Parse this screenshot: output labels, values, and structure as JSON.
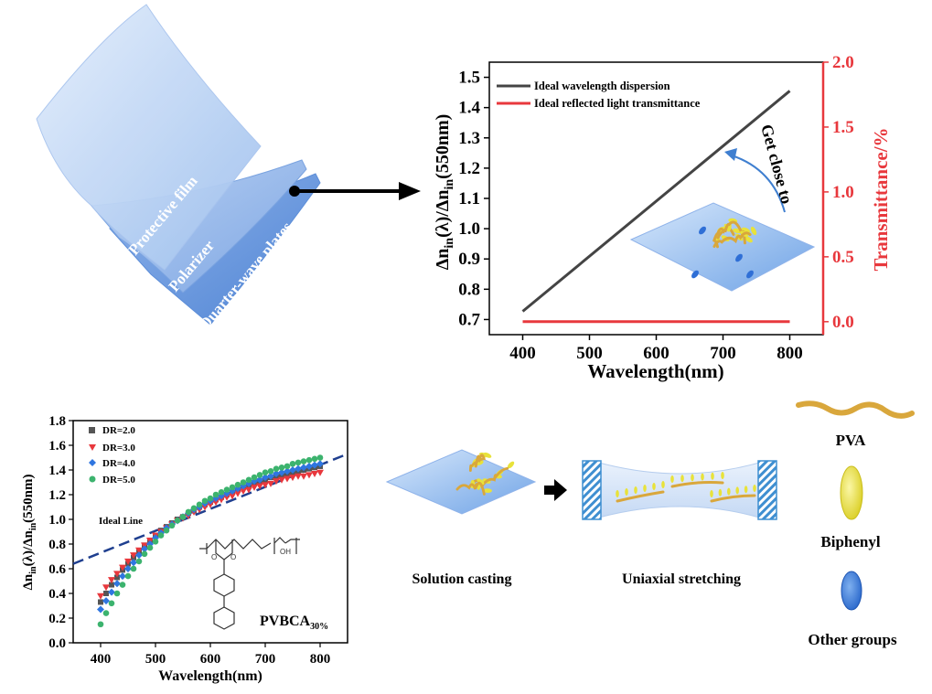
{
  "film_stack": {
    "layers": [
      "Protective film",
      "Polarizer",
      "Quarter-wave plates"
    ]
  },
  "chart_data": [
    {
      "type": "line",
      "title": "",
      "xlabel": "Wavelength(nm)",
      "ylabel_left": "Δn",
      "ylabel_left_parts": [
        "Δn",
        "in",
        "(λ)/Δn",
        "in",
        "(550nm)"
      ],
      "ylabel_right": "Transmittance/%",
      "xlim": [
        350,
        850
      ],
      "ylim_left": [
        0.65,
        1.55
      ],
      "ylim_right": [
        -0.1,
        2.0
      ],
      "x_ticks": [
        "400",
        "500",
        "600",
        "700",
        "800"
      ],
      "y_ticks_left": [
        "0.7",
        "0.8",
        "0.9",
        "1.0",
        "1.1",
        "1.2",
        "1.3",
        "1.4",
        "1.5"
      ],
      "y_ticks_right": [
        "0.0",
        "0.5",
        "1.0",
        "1.5",
        "2.0"
      ],
      "series": [
        {
          "name": "Ideal wavelength dispersion",
          "axis": "left",
          "color": "#444444",
          "x": [
            400,
            800
          ],
          "y": [
            0.727,
            1.455
          ]
        },
        {
          "name": "Ideal reflected light transmittance",
          "axis": "right",
          "color": "#e8383d",
          "x": [
            400,
            800
          ],
          "y": [
            0.0,
            0.0
          ]
        }
      ],
      "annotation": "Get close to",
      "legend": "top-left"
    },
    {
      "type": "scatter",
      "title": "",
      "xlabel": "Wavelength(nm)",
      "ylabel_parts": [
        "Δn",
        "in",
        "(λ)/Δn",
        "in",
        "(550nm)"
      ],
      "xlim": [
        350,
        850
      ],
      "ylim": [
        0.0,
        1.8
      ],
      "x_ticks": [
        "400",
        "500",
        "600",
        "700",
        "800"
      ],
      "y_ticks": [
        "0.0",
        "0.2",
        "0.4",
        "0.6",
        "0.8",
        "1.0",
        "1.2",
        "1.4",
        "1.6",
        "1.8"
      ],
      "x": [
        400,
        410,
        420,
        430,
        440,
        450,
        460,
        470,
        480,
        490,
        500,
        510,
        520,
        530,
        540,
        550,
        560,
        570,
        580,
        590,
        600,
        610,
        620,
        630,
        640,
        650,
        660,
        670,
        680,
        690,
        700,
        710,
        720,
        730,
        740,
        750,
        760,
        770,
        780,
        790,
        800
      ],
      "series": [
        {
          "name": "DR=2.0",
          "marker": "square",
          "color": "#555555",
          "y": [
            0.33,
            0.4,
            0.47,
            0.53,
            0.59,
            0.64,
            0.69,
            0.74,
            0.79,
            0.83,
            0.87,
            0.91,
            0.94,
            0.97,
            1.0,
            1.02,
            1.05,
            1.07,
            1.1,
            1.12,
            1.14,
            1.16,
            1.18,
            1.2,
            1.22,
            1.24,
            1.26,
            1.28,
            1.29,
            1.31,
            1.32,
            1.34,
            1.35,
            1.36,
            1.37,
            1.38,
            1.39,
            1.4,
            1.41,
            1.42,
            1.43
          ]
        },
        {
          "name": "DR=3.0",
          "marker": "triangle-down",
          "color": "#e8383d",
          "y": [
            0.38,
            0.45,
            0.51,
            0.56,
            0.61,
            0.66,
            0.71,
            0.75,
            0.79,
            0.83,
            0.87,
            0.9,
            0.93,
            0.96,
            0.99,
            1.01,
            1.03,
            1.06,
            1.08,
            1.1,
            1.12,
            1.14,
            1.16,
            1.18,
            1.19,
            1.21,
            1.23,
            1.24,
            1.26,
            1.27,
            1.28,
            1.29,
            1.31,
            1.32,
            1.33,
            1.34,
            1.35,
            1.35,
            1.36,
            1.37,
            1.38
          ]
        },
        {
          "name": "DR=4.0",
          "marker": "diamond",
          "color": "#2f76e0",
          "y": [
            0.27,
            0.34,
            0.41,
            0.48,
            0.54,
            0.6,
            0.65,
            0.71,
            0.76,
            0.8,
            0.85,
            0.89,
            0.93,
            0.96,
            0.99,
            1.02,
            1.05,
            1.08,
            1.1,
            1.13,
            1.15,
            1.17,
            1.19,
            1.21,
            1.23,
            1.25,
            1.27,
            1.29,
            1.31,
            1.32,
            1.34,
            1.35,
            1.37,
            1.38,
            1.39,
            1.4,
            1.41,
            1.42,
            1.43,
            1.44,
            1.45
          ]
        },
        {
          "name": "DR=5.0",
          "marker": "circle",
          "color": "#3cb36e",
          "y": [
            0.15,
            0.24,
            0.32,
            0.4,
            0.47,
            0.54,
            0.6,
            0.66,
            0.72,
            0.77,
            0.82,
            0.87,
            0.91,
            0.95,
            0.99,
            1.02,
            1.06,
            1.09,
            1.12,
            1.15,
            1.17,
            1.2,
            1.22,
            1.24,
            1.26,
            1.28,
            1.3,
            1.32,
            1.34,
            1.36,
            1.38,
            1.39,
            1.41,
            1.42,
            1.43,
            1.45,
            1.46,
            1.47,
            1.48,
            1.49,
            1.5
          ]
        }
      ],
      "ideal_line": {
        "label": "Ideal Line",
        "color": "#1f3f8f",
        "x": [
          350,
          850
        ],
        "y": [
          0.64,
          1.53
        ]
      },
      "legend": "top-left",
      "structure_label": "PVBCA",
      "structure_label_sub": "30%"
    }
  ],
  "process": {
    "step1": "Solution casting",
    "step2": "Uniaxial stretching"
  },
  "legend_components": {
    "pva": "PVA",
    "biphenyl": "Biphenyl",
    "other": "Other groups"
  },
  "colors": {
    "film_blue": "#5a8fd8",
    "film_light": "#cfe0f7",
    "chain_gold": "#d9a73c",
    "biphenyl_yellow": "#e8e23a",
    "other_blue": "#2f6fd6",
    "axis_red": "#e8383d"
  }
}
